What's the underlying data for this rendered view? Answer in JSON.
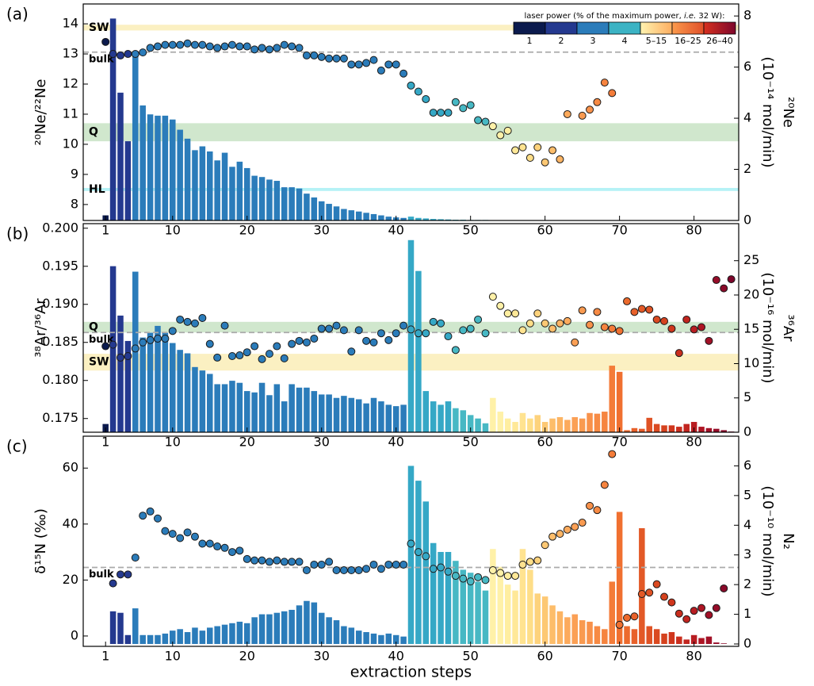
{
  "laser_power": {
    "title_parts": [
      "laser power (% of the maximum power, ",
      "i.e.",
      " 32 W):"
    ],
    "labels": [
      "1",
      "2",
      "3",
      "4",
      "5–15",
      "16–25",
      "26–40"
    ],
    "segment_colors": [
      [
        "#0b1a4d"
      ],
      [
        "#24398f"
      ],
      [
        "#2b7cba"
      ],
      [
        "#3cb3c4"
      ],
      [
        "#fff3b0",
        "#fdae61"
      ],
      [
        "#fb9a4c",
        "#e0502a"
      ],
      [
        "#d7301f",
        "#7d062b"
      ]
    ],
    "step_colors": [
      "#0b1a4d",
      "#24398f",
      "#24398f",
      "#24398f",
      "#2b7cba",
      "#2b7cba",
      "#2b7cba",
      "#2b7cba",
      "#2b7cba",
      "#2b7cba",
      "#2b7cba",
      "#2b7cba",
      "#2b7cba",
      "#2b7cba",
      "#2b7cba",
      "#2b7cba",
      "#2b7cba",
      "#2b7cba",
      "#2b7cba",
      "#2b7cba",
      "#2b7cba",
      "#2b7cba",
      "#2b7cba",
      "#2b7cba",
      "#2b7cba",
      "#2b7cba",
      "#2b7cba",
      "#2b7cba",
      "#2b7cba",
      "#2b7cba",
      "#2b7cba",
      "#2b7cba",
      "#2b7cba",
      "#2b7cba",
      "#2b7cba",
      "#2b7cba",
      "#2b7cba",
      "#2b7cba",
      "#2b7cba",
      "#2b7cba",
      "#2b7cba",
      "#35a8c6",
      "#35a8c6",
      "#35a8c6",
      "#35a8c6",
      "#35a8c6",
      "#35a8c6",
      "#47b8c4",
      "#47b8c4",
      "#47b8c4",
      "#47b8c4",
      "#47b8c4",
      "#fff1a8",
      "#fff1a8",
      "#ffeea0",
      "#ffe898",
      "#ffe390",
      "#fede88",
      "#fdd27c",
      "#fdc874",
      "#fdbd6a",
      "#fcb463",
      "#fcaa5c",
      "#fba055",
      "#f99a50",
      "#f8914a",
      "#f78a44",
      "#f6843f",
      "#f47c39",
      "#f07030",
      "#ec6a2d",
      "#e8612a",
      "#e35927",
      "#df5224",
      "#da4a21",
      "#d5421e",
      "#d0361d",
      "#c92e1e",
      "#c1251f",
      "#b81d22",
      "#ae1524",
      "#a21127",
      "#960d29",
      "#8a0a2a",
      "#7d062b"
    ]
  },
  "chart_data": [
    {
      "type": "combo",
      "label": "(a)",
      "ylabel": "²⁰Ne/²²Ne",
      "y2label": "²⁰Ne",
      "y2unit": "(10⁻¹⁴ mol/min)",
      "x": [
        1,
        2,
        3,
        4,
        5,
        6,
        7,
        8,
        9,
        10,
        11,
        12,
        13,
        14,
        15,
        16,
        17,
        18,
        19,
        20,
        21,
        22,
        23,
        24,
        25,
        26,
        27,
        28,
        29,
        30,
        31,
        32,
        33,
        34,
        35,
        36,
        37,
        38,
        39,
        40,
        41,
        42,
        43,
        44,
        45,
        46,
        47,
        48,
        49,
        50,
        51,
        52,
        53,
        54,
        55,
        56,
        57,
        58,
        59,
        60,
        61,
        62,
        63,
        64,
        65,
        66,
        67,
        68,
        69,
        70,
        71,
        72,
        73,
        74,
        75,
        76,
        77,
        78,
        79,
        80,
        81,
        82,
        83,
        84,
        85
      ],
      "xlim": [
        -2,
        86
      ],
      "xticks": [
        1,
        10,
        20,
        30,
        40,
        50,
        60,
        70,
        80
      ],
      "ylim": [
        7.47,
        14.66
      ],
      "yticks": [
        8,
        9,
        10,
        11,
        12,
        13,
        14
      ],
      "y2lim": [
        0,
        8.47
      ],
      "y2ticks": [
        0,
        2,
        4,
        6,
        8
      ],
      "refs": [
        {
          "label": "SW",
          "kind": "band",
          "range": [
            13.78,
            13.97
          ],
          "color": "#fbf0c2",
          "label_color": "#d4a800"
        },
        {
          "label": "bulk",
          "kind": "line",
          "value": 13.06,
          "color": "#aaaaaa",
          "label_color": "#999999"
        },
        {
          "label": "Q",
          "kind": "band",
          "range": [
            10.1,
            10.7
          ],
          "color": "#d0e7cd",
          "label_color": "#1a7a1a"
        },
        {
          "label": "HL",
          "kind": "band",
          "range": [
            8.45,
            8.55
          ],
          "color": "#b5f2f6",
          "label_color": "#29bfd2"
        }
      ],
      "series": [
        {
          "kind": "bar",
          "axis": "y2",
          "values": [
            0.2,
            7.9,
            5.0,
            3.1,
            6.6,
            4.5,
            4.15,
            4.1,
            4.1,
            3.95,
            3.55,
            3.2,
            2.75,
            2.9,
            2.7,
            2.35,
            2.65,
            2.1,
            2.3,
            2.05,
            1.75,
            1.7,
            1.6,
            1.55,
            1.3,
            1.3,
            1.25,
            1.05,
            0.9,
            0.75,
            0.65,
            0.55,
            0.45,
            0.4,
            0.35,
            0.3,
            0.25,
            0.2,
            0.15,
            0.12,
            0.1,
            0.15,
            0.1,
            0.08,
            0.06,
            0.05,
            0.04,
            0.03,
            0.03,
            0.02,
            0.02,
            0.02,
            0,
            0,
            0,
            0,
            0,
            0,
            0,
            0,
            0,
            0,
            0,
            0,
            0,
            0,
            0,
            0,
            0,
            0,
            0,
            0,
            0,
            0,
            0,
            0,
            0,
            0,
            0,
            0,
            0,
            0,
            0,
            0,
            0
          ]
        },
        {
          "kind": "point",
          "axis": "y",
          "values": [
            13.4,
            13.0,
            12.95,
            13.0,
            13.0,
            13.05,
            13.2,
            13.25,
            13.3,
            13.3,
            13.3,
            13.35,
            13.3,
            13.3,
            13.25,
            13.2,
            13.25,
            13.3,
            13.25,
            13.25,
            13.15,
            13.2,
            13.15,
            13.2,
            13.3,
            13.25,
            13.2,
            12.95,
            12.95,
            12.9,
            12.85,
            12.85,
            12.85,
            12.65,
            12.65,
            12.7,
            12.8,
            12.45,
            12.65,
            12.65,
            12.35,
            11.95,
            11.75,
            11.5,
            11.05,
            11.05,
            11.05,
            11.4,
            11.2,
            11.3,
            10.8,
            10.75,
            10.6,
            10.3,
            10.45,
            9.8,
            9.9,
            9.55,
            9.9,
            9.4,
            9.8,
            9.5,
            11.0,
            null,
            10.95,
            11.15,
            11.4,
            12.05,
            11.7,
            null,
            null,
            null,
            null,
            null,
            null,
            null,
            null,
            null,
            null,
            null,
            null,
            null,
            null,
            null,
            null
          ]
        }
      ]
    },
    {
      "type": "combo",
      "label": "(b)",
      "ylabel": "³⁸Ar/³⁶Ar",
      "y2label": "³⁶Ar",
      "y2unit": "(10⁻¹⁶ mol/min)",
      "x": [
        1,
        2,
        3,
        4,
        5,
        6,
        7,
        8,
        9,
        10,
        11,
        12,
        13,
        14,
        15,
        16,
        17,
        18,
        19,
        20,
        21,
        22,
        23,
        24,
        25,
        26,
        27,
        28,
        29,
        30,
        31,
        32,
        33,
        34,
        35,
        36,
        37,
        38,
        39,
        40,
        41,
        42,
        43,
        44,
        45,
        46,
        47,
        48,
        49,
        50,
        51,
        52,
        53,
        54,
        55,
        56,
        57,
        58,
        59,
        60,
        61,
        62,
        63,
        64,
        65,
        66,
        67,
        68,
        69,
        70,
        71,
        72,
        73,
        74,
        75,
        76,
        77,
        78,
        79,
        80,
        81,
        82,
        83,
        84,
        85
      ],
      "xlim": [
        -2,
        86
      ],
      "xticks": [
        1,
        10,
        20,
        30,
        40,
        50,
        60,
        70,
        80
      ],
      "ylim": [
        0.1732,
        0.2006
      ],
      "yticks": [
        0.175,
        {
          "value": 0.18,
          "label": "0.180"
        },
        0.185,
        {
          "value": 0.19,
          "label": "0.190"
        },
        0.195,
        {
          "value": 0.2,
          "label": "0.200"
        }
      ],
      "y2lim": [
        0,
        30.4
      ],
      "y2ticks": [
        0,
        5,
        10,
        15,
        20,
        25
      ],
      "refs": [
        {
          "label": "Q",
          "kind": "band",
          "range": [
            0.1863,
            0.1877
          ],
          "color": "#d0e7cd",
          "label_color": "#1a7a1a"
        },
        {
          "label": "bulk",
          "kind": "line",
          "value": 0.1863,
          "color": "#aaaaaa",
          "label_color": "#999999"
        },
        {
          "label": "SW",
          "kind": "band",
          "range": [
            0.1813,
            0.1835
          ],
          "color": "#fbf0c2",
          "label_color": "#d4a800"
        }
      ],
      "series": [
        {
          "kind": "bar",
          "axis": "y2",
          "values": [
            1.2,
            24.2,
            17,
            13.3,
            23.4,
            13.8,
            14.5,
            15.5,
            14.5,
            13.0,
            12.0,
            11.5,
            9.5,
            9.0,
            8.5,
            7.0,
            7.0,
            7.5,
            7.2,
            6.0,
            5.8,
            7.2,
            5.4,
            7.0,
            4.5,
            7.0,
            6.5,
            6.5,
            6.0,
            5.5,
            5.5,
            5.0,
            5.3,
            5.0,
            4.8,
            4.2,
            5.0,
            4.5,
            4.0,
            3.8,
            4.0,
            28.0,
            23.5,
            6.0,
            4.5,
            4.0,
            4.5,
            3.5,
            3.2,
            2.5,
            2.0,
            1.3,
            5.0,
            3.0,
            2.0,
            1.5,
            2.8,
            2.0,
            2.5,
            1.5,
            2.0,
            2.2,
            1.8,
            2.2,
            2.0,
            2.8,
            2.7,
            3.0,
            9.7,
            8.8,
            0.3,
            0.6,
            0.5,
            2.1,
            1.2,
            1.0,
            1.0,
            0.8,
            1.2,
            1.5,
            0.8,
            0.6,
            0.5,
            0.3,
            0.1
          ]
        },
        {
          "kind": "point",
          "axis": "y",
          "values": [
            0.1845,
            0.1847,
            0.183,
            0.1832,
            0.1842,
            0.185,
            0.1853,
            0.1855,
            0.1855,
            0.1865,
            0.188,
            0.1877,
            0.1875,
            0.1882,
            0.1848,
            0.183,
            0.1872,
            0.1832,
            0.1833,
            0.1837,
            0.1845,
            0.1828,
            0.1835,
            0.1845,
            0.1829,
            0.1848,
            0.1852,
            0.185,
            0.1855,
            0.1868,
            0.1868,
            0.1872,
            0.1866,
            0.1838,
            0.1866,
            0.1852,
            0.185,
            0.1862,
            0.1853,
            0.1862,
            0.1872,
            0.1867,
            0.1862,
            0.1862,
            0.1877,
            0.1875,
            0.1858,
            0.184,
            0.1866,
            0.1868,
            0.188,
            0.1862,
            0.191,
            0.1898,
            0.1888,
            0.1888,
            0.1866,
            0.1875,
            0.1888,
            0.1875,
            0.1868,
            0.1875,
            0.1878,
            0.185,
            0.1892,
            0.1873,
            0.189,
            0.187,
            0.1868,
            0.1865,
            0.1904,
            0.189,
            0.1894,
            0.1893,
            0.188,
            0.1878,
            0.1868,
            0.1836,
            0.188,
            0.1867,
            0.187,
            0.1852,
            0.1932,
            0.1921,
            0.1933
          ]
        }
      ]
    },
    {
      "type": "combo",
      "label": "(c)",
      "ylabel": "δ¹⁵N (‰)",
      "y2label": "N₂",
      "y2unit": "(10⁻¹⁰ mol/min)",
      "xlabel": "extraction steps",
      "x": [
        1,
        2,
        3,
        4,
        5,
        6,
        7,
        8,
        9,
        10,
        11,
        12,
        13,
        14,
        15,
        16,
        17,
        18,
        19,
        20,
        21,
        22,
        23,
        24,
        25,
        26,
        27,
        28,
        29,
        30,
        31,
        32,
        33,
        34,
        35,
        36,
        37,
        38,
        39,
        40,
        41,
        42,
        43,
        44,
        45,
        46,
        47,
        48,
        49,
        50,
        51,
        52,
        53,
        54,
        55,
        56,
        57,
        58,
        59,
        60,
        61,
        62,
        63,
        64,
        65,
        66,
        67,
        68,
        69,
        70,
        71,
        72,
        73,
        74,
        75,
        76,
        77,
        78,
        79,
        80,
        81,
        82,
        83,
        84,
        85
      ],
      "xlim": [
        -2,
        86
      ],
      "xticks": [
        1,
        10,
        20,
        30,
        40,
        50,
        60,
        70,
        80
      ],
      "ylim": [
        -3.7,
        71.4
      ],
      "yticks": [
        0,
        20,
        40,
        60
      ],
      "y2lim": [
        -0.08,
        7.0
      ],
      "y2ticks": [
        0,
        1,
        2,
        3,
        4,
        5,
        6
      ],
      "refs": [
        {
          "label": "bulk",
          "kind": "line",
          "value": 24.5,
          "color": "#aaaaaa",
          "label_color": "#999999"
        }
      ],
      "series": [
        {
          "kind": "bar",
          "axis": "y2",
          "values": [
            0,
            1.1,
            1.05,
            0.3,
            1.2,
            0.3,
            0.3,
            0.3,
            0.35,
            0.45,
            0.5,
            0.4,
            0.55,
            0.45,
            0.55,
            0.6,
            0.65,
            0.7,
            0.75,
            0.7,
            0.9,
            1.0,
            1.0,
            1.05,
            1.1,
            1.15,
            1.3,
            1.45,
            1.4,
            1.05,
            0.9,
            0.8,
            0.6,
            0.55,
            0.45,
            0.4,
            0.35,
            0.3,
            0.35,
            0.3,
            0.25,
            6.0,
            5.5,
            4.8,
            3.4,
            3.1,
            3.1,
            2.8,
            2.5,
            2.4,
            2.1,
            1.8,
            3.2,
            2.6,
            2.0,
            1.8,
            3.2,
            2.5,
            1.7,
            1.6,
            1.3,
            1.1,
            0.9,
            1.0,
            0.8,
            0.75,
            0.6,
            0.5,
            2.1,
            4.45,
            0.6,
            0.5,
            3.9,
            0.6,
            0.5,
            0.35,
            0.4,
            0.25,
            0.15,
            0.3,
            0.2,
            0.25,
            0.05,
            0.02,
            0
          ]
        },
        {
          "kind": "point",
          "axis": "y",
          "values": [
            null,
            18.8,
            22,
            22,
            28,
            43,
            44.5,
            42,
            37.5,
            36.5,
            35,
            37,
            35.5,
            33,
            33,
            32,
            31.5,
            30,
            30.5,
            27.5,
            27,
            27,
            26.5,
            27,
            26.5,
            26.5,
            26.5,
            23.5,
            25.5,
            25.5,
            26.5,
            23.5,
            23.5,
            23.5,
            23.5,
            24,
            25.5,
            24,
            25.5,
            25.5,
            25.5,
            33,
            30,
            28.5,
            24,
            24.5,
            23,
            21.5,
            20.5,
            19.5,
            21,
            20,
            23.5,
            22.5,
            21.5,
            21.5,
            25.5,
            26.5,
            27,
            32.5,
            35.5,
            36.5,
            38,
            39,
            40.5,
            46.5,
            45,
            54,
            65,
            4,
            6.5,
            7,
            15,
            15.5,
            18.5,
            14,
            12,
            8,
            6,
            9,
            10,
            7.5,
            10,
            17,
            null
          ]
        }
      ]
    }
  ]
}
